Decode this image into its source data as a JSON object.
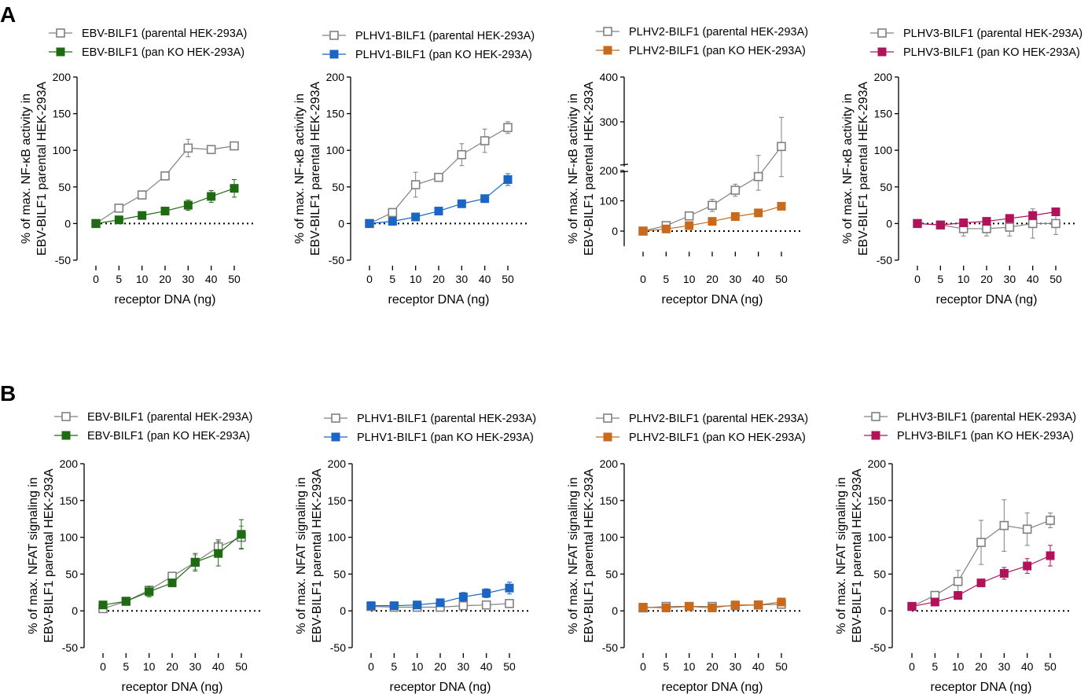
{
  "panel_labels": [
    "A",
    "B"
  ],
  "chart_data": [
    {
      "type": "line",
      "panel": "A",
      "ylabel_lines": [
        "% of max. NF-κB activity in",
        "EBV-BILF1 parental HEK-293A"
      ],
      "xlabel": "receptor DNA (ng)",
      "categories": [
        "0",
        "5",
        "10",
        "20",
        "30",
        "40",
        "50"
      ],
      "ylim": [
        -50,
        200
      ],
      "yticks": [
        -50,
        0,
        50,
        100,
        150,
        200
      ],
      "axis_break": false,
      "series": [
        {
          "name": "EBV-BILF1 (parental HEK-293A)",
          "color": "#808080",
          "marker": "open-square",
          "values": [
            0,
            21,
            39,
            65,
            103,
            101,
            106
          ],
          "errors": [
            0,
            3,
            3,
            4,
            12,
            3,
            3
          ]
        },
        {
          "name": "EBV-BILF1 (pan KO HEK-293A)",
          "color": "#1f6b12",
          "marker": "filled-square",
          "values": [
            0,
            5,
            11,
            17,
            25,
            37,
            48
          ],
          "errors": [
            0,
            2,
            3,
            5,
            7,
            8,
            12
          ]
        }
      ]
    },
    {
      "type": "line",
      "panel": "A",
      "ylabel_lines": [
        "% of max. NF-κB activity in",
        "EBV-BILF1 parental HEK-293A"
      ],
      "xlabel": "receptor DNA (ng)",
      "categories": [
        "0",
        "5",
        "10",
        "20",
        "30",
        "40",
        "50"
      ],
      "ylim": [
        -50,
        200
      ],
      "yticks": [
        -50,
        0,
        50,
        100,
        150,
        200
      ],
      "axis_break": false,
      "series": [
        {
          "name": "PLHV1-BILF1 (parental HEK-293A)",
          "color": "#808080",
          "marker": "open-square",
          "values": [
            0,
            15,
            53,
            63,
            94,
            113,
            131
          ],
          "errors": [
            0,
            5,
            17,
            5,
            15,
            16,
            8
          ]
        },
        {
          "name": "PLHV1-BILF1 (pan KO HEK-293A)",
          "color": "#1b65c4",
          "marker": "filled-square",
          "values": [
            0,
            3,
            9,
            17,
            27,
            34,
            60
          ],
          "errors": [
            0,
            1,
            3,
            3,
            5,
            5,
            8
          ]
        }
      ]
    },
    {
      "type": "line",
      "panel": "A",
      "ylabel_lines": [
        "% of max. NF-κB activity in",
        "EBV-BILF1 parental HEK-293A"
      ],
      "xlabel": "receptor DNA (ng)",
      "categories": [
        "0",
        "5",
        "10",
        "20",
        "30",
        "40",
        "50"
      ],
      "ylim": [
        -50,
        400
      ],
      "yticks": [
        0,
        100,
        200,
        300,
        400
      ],
      "axis_break": true,
      "series": [
        {
          "name": "PLHV2-BILF1 (parental HEK-293A)",
          "color": "#808080",
          "marker": "open-square",
          "values": [
            0,
            18,
            50,
            85,
            135,
            180,
            245
          ],
          "errors": [
            0,
            5,
            12,
            20,
            20,
            45,
            65
          ]
        },
        {
          "name": "PLHV2-BILF1 (pan KO HEK-293A)",
          "color": "#c9691c",
          "marker": "filled-square",
          "values": [
            0,
            7,
            18,
            32,
            48,
            60,
            82
          ],
          "errors": [
            0,
            2,
            3,
            5,
            5,
            5,
            5
          ]
        }
      ]
    },
    {
      "type": "line",
      "panel": "A",
      "ylabel_lines": [
        "% of max. NF-κB activity in",
        "EBV-BILF1 parental HEK-293A"
      ],
      "xlabel": "receptor DNA (ng)",
      "categories": [
        "0",
        "5",
        "10",
        "20",
        "30",
        "40",
        "50"
      ],
      "ylim": [
        -50,
        200
      ],
      "yticks": [
        -50,
        0,
        50,
        100,
        150,
        200
      ],
      "axis_break": false,
      "series": [
        {
          "name": "PLHV3-BILF1 (parental HEK-293A)",
          "color": "#808080",
          "marker": "open-square",
          "values": [
            0,
            -2,
            -7,
            -7,
            -5,
            0,
            0
          ],
          "errors": [
            0,
            3,
            10,
            10,
            12,
            20,
            15
          ]
        },
        {
          "name": "PLHV3-BILF1 (pan KO HEK-293A)",
          "color": "#b1135b",
          "marker": "filled-square",
          "values": [
            0,
            -2,
            1,
            3,
            7,
            11,
            16
          ],
          "errors": [
            0,
            2,
            2,
            3,
            4,
            5,
            5
          ]
        }
      ]
    },
    {
      "type": "line",
      "panel": "B",
      "ylabel_lines": [
        "% of max. NFAT signaling in",
        "EBV-BILF1 parental HEK-293A"
      ],
      "xlabel": "receptor DNA (ng)",
      "categories": [
        "0",
        "5",
        "10",
        "20",
        "30",
        "40",
        "50"
      ],
      "ylim": [
        -50,
        200
      ],
      "yticks": [
        -50,
        0,
        50,
        100,
        150,
        200
      ],
      "axis_break": false,
      "series": [
        {
          "name": "EBV-BILF1 (parental HEK-293A)",
          "color": "#808080",
          "marker": "open-square",
          "values": [
            3,
            13,
            28,
            47,
            66,
            87,
            100
          ],
          "errors": [
            2,
            3,
            5,
            5,
            10,
            10,
            15
          ]
        },
        {
          "name": "EBV-BILF1 (pan KO HEK-293A)",
          "color": "#1f6b12",
          "marker": "filled-square",
          "values": [
            8,
            13,
            26,
            38,
            66,
            78,
            104
          ],
          "errors": [
            2,
            3,
            7,
            5,
            12,
            17,
            20
          ]
        }
      ]
    },
    {
      "type": "line",
      "panel": "B",
      "ylabel_lines": [
        "% of max. NFAT signaling in",
        "EBV-BILF1 parental HEK-293A"
      ],
      "xlabel": "receptor DNA (ng)",
      "categories": [
        "0",
        "5",
        "10",
        "20",
        "30",
        "40",
        "50"
      ],
      "ylim": [
        -50,
        200
      ],
      "yticks": [
        -50,
        0,
        50,
        100,
        150,
        200
      ],
      "axis_break": false,
      "series": [
        {
          "name": "PLHV1-BILF1 (parental HEK-293A)",
          "color": "#808080",
          "marker": "open-square",
          "values": [
            6,
            5,
            5,
            5,
            7,
            8,
            10
          ],
          "errors": [
            1,
            1,
            1,
            1,
            2,
            2,
            2
          ]
        },
        {
          "name": "PLHV1-BILF1 (pan KO HEK-293A)",
          "color": "#1b65c4",
          "marker": "filled-square",
          "values": [
            7,
            7,
            8,
            11,
            19,
            24,
            31
          ],
          "errors": [
            1,
            1,
            2,
            3,
            6,
            6,
            8
          ]
        }
      ]
    },
    {
      "type": "line",
      "panel": "B",
      "ylabel_lines": [
        "% of max. NFAT signaling in",
        "EBV-BILF1 parental HEK-293A"
      ],
      "xlabel": "receptor DNA (ng)",
      "categories": [
        "0",
        "5",
        "10",
        "20",
        "30",
        "40",
        "50"
      ],
      "ylim": [
        -50,
        200
      ],
      "yticks": [
        -50,
        0,
        50,
        100,
        150,
        200
      ],
      "axis_break": false,
      "series": [
        {
          "name": "PLHV2-BILF1 (parental HEK-293A)",
          "color": "#808080",
          "marker": "open-square",
          "values": [
            4,
            6,
            6,
            6,
            7,
            8,
            9
          ],
          "errors": [
            1,
            1,
            1,
            1,
            1,
            1,
            2
          ]
        },
        {
          "name": "PLHV2-BILF1 (pan KO HEK-293A)",
          "color": "#c9691c",
          "marker": "filled-square",
          "values": [
            5,
            4,
            6,
            4,
            8,
            8,
            12
          ],
          "errors": [
            1,
            1,
            1,
            1,
            2,
            2,
            3
          ]
        }
      ]
    },
    {
      "type": "line",
      "panel": "B",
      "ylabel_lines": [
        "% of max. NFAT signaling in",
        "EBV-BILF1 parental HEK-293A"
      ],
      "xlabel": "receptor DNA (ng)",
      "categories": [
        "0",
        "5",
        "10",
        "20",
        "30",
        "40",
        "50"
      ],
      "ylim": [
        -50,
        200
      ],
      "yticks": [
        -50,
        0,
        50,
        100,
        150,
        200
      ],
      "axis_break": false,
      "series": [
        {
          "name": "PLHV3-BILF1 (parental HEK-293A)",
          "color": "#808080",
          "marker": "open-square",
          "values": [
            6,
            21,
            40,
            93,
            116,
            111,
            123
          ],
          "errors": [
            1,
            4,
            15,
            30,
            35,
            22,
            10
          ]
        },
        {
          "name": "PLHV3-BILF1 (pan KO HEK-293A)",
          "color": "#b1135b",
          "marker": "filled-square",
          "values": [
            6,
            12,
            21,
            38,
            51,
            61,
            75
          ],
          "errors": [
            1,
            3,
            4,
            4,
            8,
            10,
            14
          ]
        }
      ]
    }
  ]
}
